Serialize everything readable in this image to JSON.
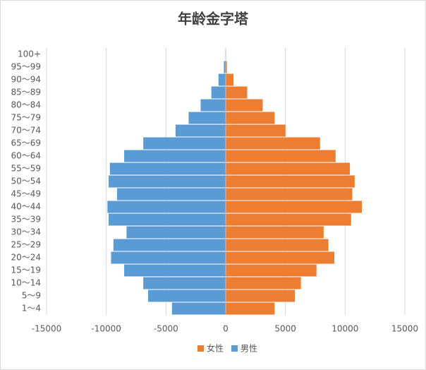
{
  "chart_data": {
    "type": "bar",
    "title": "年龄金字塔",
    "categories": [
      "1～4",
      "5～9",
      "10～14",
      "15～19",
      "20～24",
      "25～29",
      "30～34",
      "35～39",
      "40～44",
      "45～49",
      "50～54",
      "55～59",
      "60～64",
      "65～69",
      "70～74",
      "75～79",
      "80～84",
      "85～89",
      "90～94",
      "95～99",
      "100+"
    ],
    "series": [
      {
        "name": "女性",
        "color": "#ed7d31",
        "values": [
          4100,
          5800,
          6300,
          7600,
          9100,
          8600,
          8200,
          10500,
          11400,
          10600,
          10800,
          10400,
          9200,
          7900,
          5000,
          4100,
          3100,
          1800,
          650,
          100,
          20
        ]
      },
      {
        "name": "男性",
        "color": "#5b9bd5",
        "values": [
          -4500,
          -6500,
          -6900,
          -8500,
          -9600,
          -9400,
          -8300,
          -9800,
          -9900,
          -9100,
          -9800,
          -9700,
          -8500,
          -6900,
          -4200,
          -3100,
          -2100,
          -1200,
          -600,
          -150,
          -30
        ]
      }
    ],
    "xlim": [
      -15000,
      15000
    ],
    "xticks": [
      -15000,
      -10000,
      -5000,
      0,
      5000,
      10000,
      15000
    ],
    "grid": true
  }
}
